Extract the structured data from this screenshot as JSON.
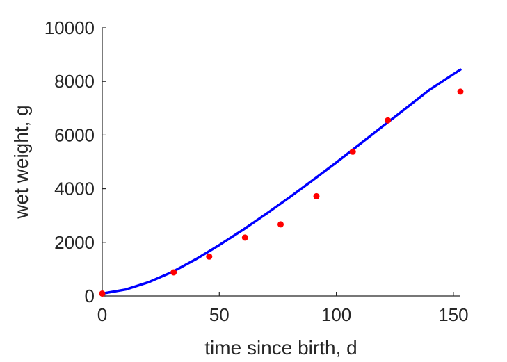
{
  "chart_data": {
    "type": "scatter",
    "title": "",
    "xlabel": "time since birth, d",
    "ylabel": "wet weight, g",
    "xlim": [
      0,
      153
    ],
    "ylim": [
      0,
      10000
    ],
    "xticks": [
      0,
      50,
      100,
      150
    ],
    "yticks": [
      0,
      2000,
      4000,
      6000,
      8000,
      10000
    ],
    "grid": false,
    "series": [
      {
        "type": "scatter",
        "color": "#ff0000",
        "x": [
          0,
          30.5,
          45.7,
          61,
          76.2,
          91.5,
          107,
          122,
          153
        ],
        "y": [
          90,
          880,
          1470,
          2180,
          2670,
          3720,
          5380,
          6550,
          7620
        ]
      },
      {
        "type": "line",
        "color": "#0000ff",
        "x": [
          0,
          10,
          20,
          30,
          40,
          50,
          60,
          70,
          80,
          90,
          100,
          110,
          120,
          130,
          140,
          153
        ],
        "y": [
          90,
          240,
          520,
          900,
          1370,
          1900,
          2460,
          3060,
          3680,
          4320,
          4980,
          5660,
          6340,
          7020,
          7700,
          8440
        ]
      }
    ]
  }
}
